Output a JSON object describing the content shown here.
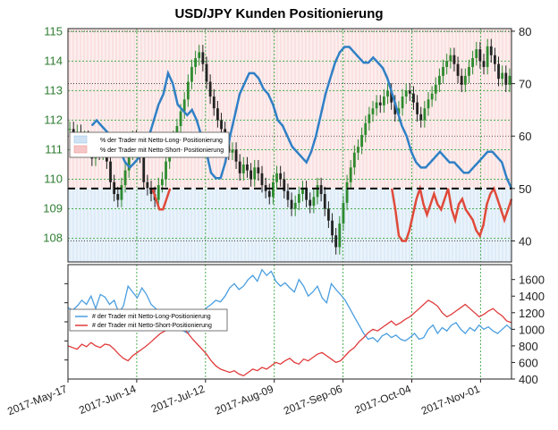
{
  "chart_data": {
    "type": "line",
    "title": "USD/JPY Kunden Positionierung",
    "x_ticks": [
      "2017-May-17",
      "2017-Jun-14",
      "2017-Jul-12",
      "2017-Aug-09",
      "2017-Sep-06",
      "2017-Oct-04",
      "2017-Nov-01"
    ],
    "colors": {
      "candle_up": "#2e8b2e",
      "candle_down": "#222222",
      "long_line": "#2f80c6",
      "short_line": "#e04a3a",
      "long_count": "#4a9ee0",
      "short_count": "#e03b3b",
      "dashed": "#000000"
    },
    "top": {
      "left_axis": {
        "ticks": [
          108,
          109,
          110,
          111,
          112,
          113,
          114,
          115
        ],
        "range": [
          107.2,
          115.1
        ]
      },
      "right_axis": {
        "ticks": [
          40,
          50,
          60,
          70,
          80
        ],
        "range": [
          36,
          80.5
        ]
      },
      "neutral_level": 50,
      "legend": [
        "% der Trader mit Netto-Long- Positionierung",
        "% der Trader mit Netto-Short- Positionierung"
      ],
      "price_candles_close": [
        111.7,
        111.3,
        111.6,
        111.2,
        111.4,
        111.0,
        110.7,
        111.1,
        110.9,
        111.3,
        110.6,
        109.9,
        109.5,
        109.3,
        109.8,
        110.3,
        110.9,
        111.4,
        111.1,
        110.8,
        109.9,
        109.7,
        109.5,
        109.3,
        109.8,
        110.0,
        110.6,
        111.0,
        111.4,
        111.8,
        112.3,
        112.7,
        113.3,
        113.8,
        114.1,
        114.3,
        113.9,
        113.3,
        112.8,
        112.4,
        112.0,
        111.7,
        111.3,
        110.9,
        111.0,
        110.6,
        110.2,
        110.5,
        110.3,
        110.0,
        110.4,
        110.2,
        109.8,
        109.6,
        109.4,
        109.9,
        110.2,
        110.0,
        109.6,
        109.3,
        109.0,
        109.2,
        109.5,
        109.7,
        109.3,
        109.1,
        109.4,
        109.8,
        109.5,
        109.0,
        108.6,
        108.1,
        107.7,
        108.5,
        109.2,
        109.9,
        110.4,
        110.9,
        111.1,
        111.5,
        111.9,
        112.2,
        112.4,
        112.6,
        112.5,
        112.8,
        113.0,
        112.6,
        112.2,
        112.4,
        112.8,
        113.0,
        112.9,
        112.6,
        112.2,
        112.0,
        112.4,
        112.7,
        112.9,
        113.2,
        113.5,
        113.8,
        114.0,
        114.2,
        113.9,
        113.5,
        113.2,
        113.5,
        113.8,
        114.1,
        114.4,
        114.0,
        113.8,
        114.5,
        114.2,
        113.9,
        113.4,
        113.6,
        113.2,
        113.5
      ],
      "long_pct": [
        null,
        null,
        null,
        null,
        null,
        62,
        63,
        62,
        61,
        60,
        60,
        57,
        55,
        54,
        55,
        56,
        58,
        60,
        63,
        66,
        68,
        72,
        70,
        66,
        65,
        64,
        65,
        63,
        60,
        57,
        53,
        52,
        52,
        55,
        60,
        64,
        68,
        70,
        72,
        72,
        71,
        69,
        68,
        66,
        63,
        62,
        60,
        58,
        57,
        56,
        55,
        57,
        60,
        64,
        68,
        71,
        74,
        76,
        77,
        77,
        76,
        75,
        74,
        74,
        75,
        74,
        73,
        71,
        68,
        65,
        62,
        60,
        57,
        55,
        54,
        54,
        55,
        56,
        57,
        56,
        55,
        55,
        54,
        53,
        53,
        54,
        55,
        56,
        57,
        57,
        56,
        55,
        52,
        50
      ],
      "short_pct": [
        null,
        null,
        null,
        null,
        null,
        null,
        null,
        null,
        null,
        null,
        null,
        null,
        null,
        null,
        null,
        null,
        null,
        null,
        null,
        null,
        null,
        null,
        null,
        null,
        50,
        48,
        46,
        46,
        48,
        50,
        null,
        null,
        null,
        null,
        null,
        null,
        null,
        null,
        null,
        null,
        null,
        null,
        null,
        null,
        null,
        null,
        null,
        null,
        null,
        null,
        null,
        null,
        null,
        null,
        null,
        null,
        null,
        null,
        null,
        null,
        null,
        null,
        null,
        null,
        null,
        null,
        null,
        null,
        null,
        null,
        null,
        null,
        null,
        null,
        null,
        null,
        null,
        null,
        null,
        null,
        null,
        null,
        null,
        null,
        null,
        null,
        null,
        null,
        null,
        null,
        null,
        null,
        50,
        46,
        41,
        40,
        40,
        42,
        45,
        48,
        50,
        47,
        45,
        47,
        49,
        47,
        46,
        48,
        50,
        46,
        44,
        47,
        48,
        46,
        45,
        44,
        42,
        41,
        43,
        47,
        49,
        50,
        48,
        46,
        44,
        46,
        48
      ]
    },
    "bottom": {
      "right_axis": {
        "ticks": [
          400,
          600,
          800,
          1000,
          1200,
          1400,
          1600
        ],
        "range": [
          400,
          1780
        ]
      },
      "legend": [
        "# der Trader mit Netto-Long-Positionierung",
        "# der Trader mit Netto-Short-Positionierung"
      ],
      "long_count": [
        1260,
        1230,
        1280,
        1350,
        1300,
        1400,
        1250,
        1420,
        1390,
        1300,
        1350,
        1200,
        1280,
        1520,
        1450,
        1380,
        1500,
        1420,
        1300,
        1250,
        1180,
        1100,
        1050,
        1020,
        1000,
        980,
        950,
        1050,
        1120,
        1200,
        1260,
        1300,
        1350,
        1330,
        1400,
        1500,
        1550,
        1480,
        1520,
        1600,
        1650,
        1580,
        1720,
        1650,
        1700,
        1580,
        1520,
        1560,
        1500,
        1450,
        1600,
        1520,
        1400,
        1450,
        1520,
        1380,
        1320,
        1550,
        1480,
        1420,
        1350,
        1250,
        1150,
        1050,
        950,
        880,
        900,
        850,
        920,
        950,
        900,
        930,
        880,
        860,
        900,
        950,
        880,
        900,
        1000,
        1050,
        950,
        1020,
        980,
        1050,
        1080,
        1000,
        950,
        1020,
        980,
        1050,
        1000,
        1030,
        980,
        950,
        1000,
        1050,
        1000
      ],
      "short_count": [
        800,
        780,
        760,
        820,
        790,
        840,
        800,
        780,
        820,
        810,
        760,
        700,
        650,
        620,
        680,
        720,
        760,
        800,
        850,
        900,
        950,
        980,
        1000,
        1050,
        1080,
        1020,
        950,
        880,
        820,
        760,
        700,
        620,
        560,
        520,
        500,
        480,
        500,
        460,
        440,
        480,
        520,
        500,
        540,
        520,
        560,
        600,
        580,
        620,
        650,
        600,
        580,
        640,
        620,
        660,
        700,
        720,
        680,
        640,
        600,
        620,
        680,
        740,
        780,
        850,
        900,
        960,
        1000,
        980,
        1020,
        1060,
        1100,
        1050,
        1080,
        1120,
        1150,
        1200,
        1250,
        1300,
        1350,
        1320,
        1280,
        1200,
        1150,
        1180,
        1220,
        1260,
        1300,
        1250,
        1200,
        1150,
        1180,
        1220,
        1250,
        1200,
        1160,
        1100,
        1080
      ]
    }
  }
}
